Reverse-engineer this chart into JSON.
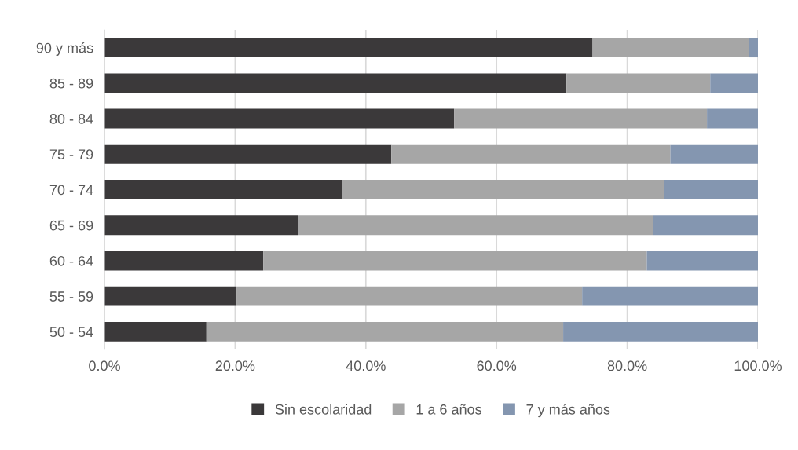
{
  "chart_data": {
    "type": "bar",
    "orientation": "horizontal",
    "stacked": true,
    "categories": [
      "90 y más",
      "85 - 89",
      "80 - 84",
      "75 - 79",
      "70 - 74",
      "65 - 69",
      "60 - 64",
      "55 - 59",
      "50 - 54"
    ],
    "series": [
      {
        "name": "Sin escolaridad",
        "color": "#3b393a",
        "values": [
          74.7,
          70.7,
          53.5,
          43.9,
          36.3,
          29.6,
          24.3,
          20.2,
          15.6
        ]
      },
      {
        "name": "1 a 6 años",
        "color": "#a6a6a6",
        "values": [
          23.9,
          22.0,
          38.7,
          42.7,
          49.3,
          54.4,
          58.7,
          52.9,
          54.6
        ]
      },
      {
        "name": "7 y más años",
        "color": "#8496b0",
        "values": [
          1.4,
          7.3,
          7.8,
          13.4,
          14.4,
          16.0,
          17.0,
          26.9,
          29.8
        ]
      }
    ],
    "xlim": [
      0,
      100
    ],
    "xticks": [
      {
        "value": 0,
        "label": "0.0%"
      },
      {
        "value": 20,
        "label": "20.0%"
      },
      {
        "value": 40,
        "label": "40.0%"
      },
      {
        "value": 60,
        "label": "60.0%"
      },
      {
        "value": 80,
        "label": "80.0%"
      },
      {
        "value": 100,
        "label": "100.0%"
      }
    ],
    "grid": "x",
    "legend": "bottom"
  }
}
